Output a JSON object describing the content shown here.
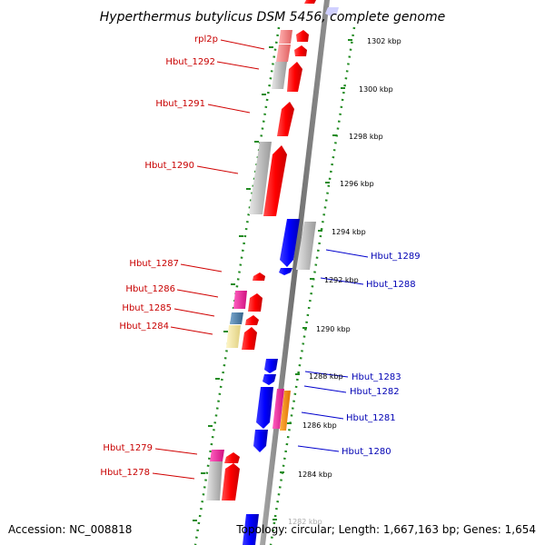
{
  "title": "Hyperthermus butylicus DSM 5456, complete genome",
  "footer": {
    "accession": "Accession: NC_008818",
    "topology": "Topology: circular; Length: 1,667,163 bp; Genes: 1,654"
  },
  "colors": {
    "forward_gene": "#ff0000",
    "reverse_gene": "#0000ff",
    "cds_gray": "#b8b8b8",
    "magenta_feature": "#ff1493",
    "steelblue_feature": "#4682b4",
    "khaki_feature": "#f5e6a0",
    "orange_feature": "#ff8c00",
    "ruler_dots": "#228b22",
    "backbone": "#808080"
  },
  "kbp_ticks": [
    "1302 kbp",
    "1300 kbp",
    "1298 kbp",
    "1296 kbp",
    "1294 kbp",
    "1292 kbp",
    "1290 kbp",
    "1288 kbp",
    "1286 kbp",
    "1284 kbp",
    "1282 kbp"
  ],
  "forward_genes": [
    {
      "name": "rpl2p"
    },
    {
      "name": "Hbut_1292"
    },
    {
      "name": "Hbut_1291"
    },
    {
      "name": "Hbut_1290"
    },
    {
      "name": "Hbut_1287"
    },
    {
      "name": "Hbut_1286"
    },
    {
      "name": "Hbut_1285"
    },
    {
      "name": "Hbut_1284"
    },
    {
      "name": "Hbut_1279"
    },
    {
      "name": "Hbut_1278"
    }
  ],
  "reverse_genes": [
    {
      "name": "Hbut_1289"
    },
    {
      "name": "Hbut_1288"
    },
    {
      "name": "Hbut_1283"
    },
    {
      "name": "Hbut_1282"
    },
    {
      "name": "Hbut_1281"
    },
    {
      "name": "Hbut_1280"
    }
  ]
}
